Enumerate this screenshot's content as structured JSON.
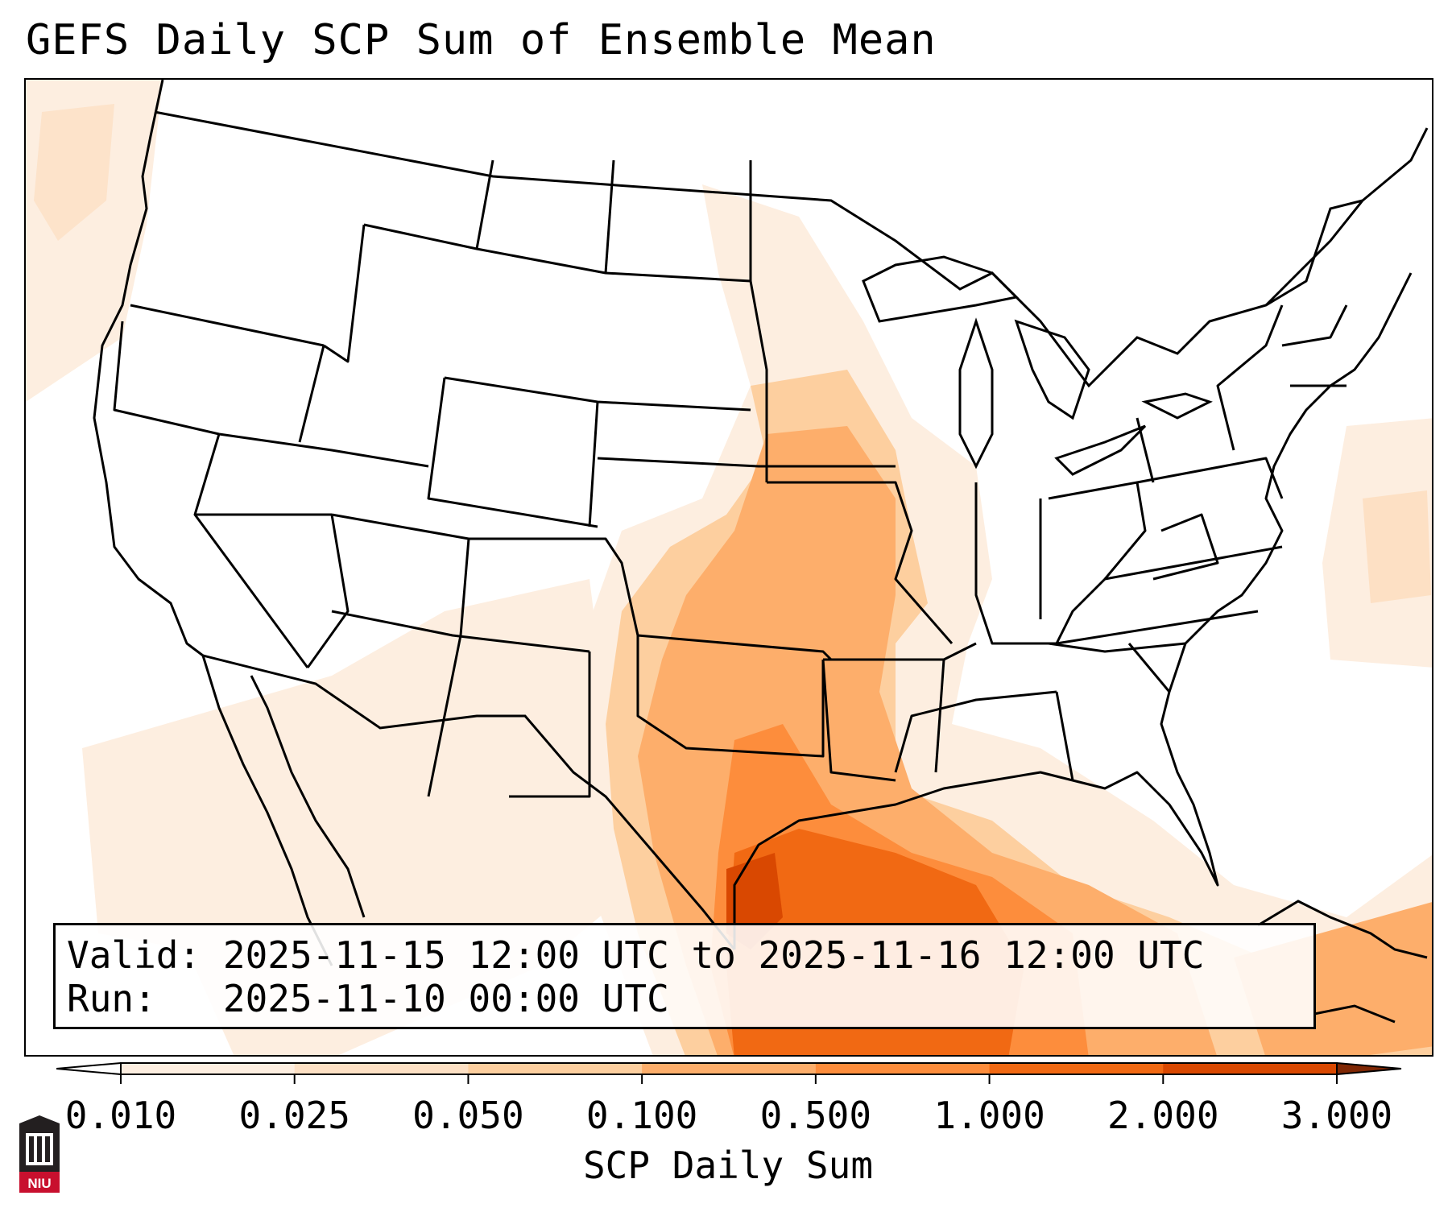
{
  "title": "GEFS Daily SCP Sum of Ensemble Mean",
  "info": {
    "valid_label": "Valid:",
    "valid_value": "2025-11-15 12:00 UTC to 2025-11-16 12:00 UTC",
    "run_label": "Run:",
    "run_value": "2025-11-10 00:00 UTC"
  },
  "colorbar": {
    "label": "SCP Daily Sum",
    "ticks": [
      "0.010",
      "0.025",
      "0.050",
      "0.100",
      "0.500",
      "1.000",
      "2.000",
      "3.000"
    ],
    "colors": [
      "#fdeee0",
      "#fde0c4",
      "#fdcf9f",
      "#fdae6b",
      "#fd8d3c",
      "#f16913",
      "#d94801",
      "#a63603"
    ]
  },
  "logo": {
    "text": "NIU",
    "colors": {
      "body": "#231f20",
      "band": "#c8102e"
    }
  }
}
